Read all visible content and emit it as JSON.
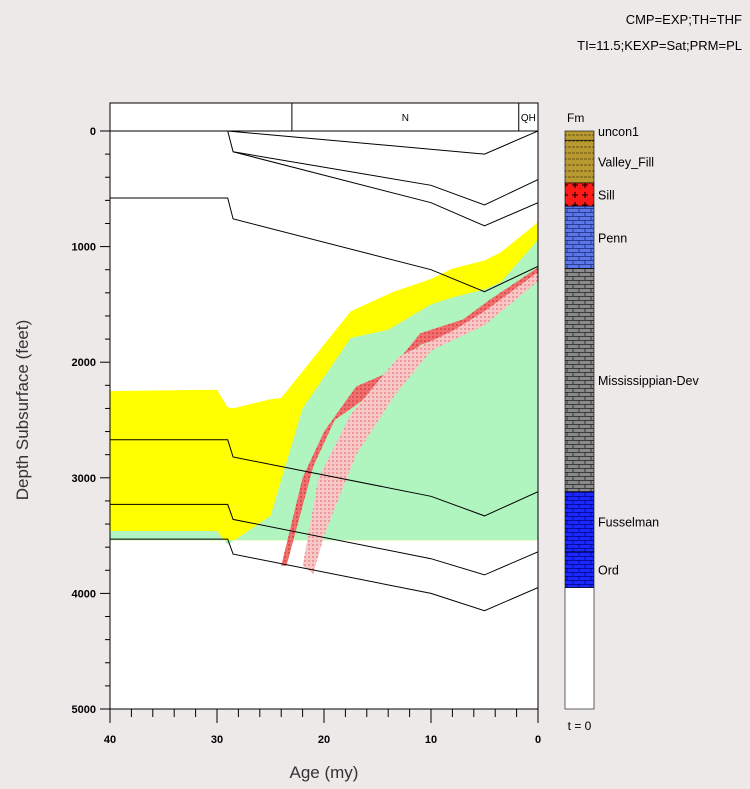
{
  "annotations": {
    "line1": "CMP=EXP;TH=THF",
    "line2": "TI=11.5;KEXP=Sat;PRM=PL"
  },
  "chart_data": {
    "type": "area",
    "title": "",
    "xlabel": "Age (my)",
    "ylabel": "Depth Subsurface (feet)",
    "xlim": [
      40,
      0
    ],
    "ylim": [
      0,
      5000
    ],
    "x_ticks": [
      40,
      30,
      20,
      10,
      0
    ],
    "y_ticks": [
      0,
      1000,
      2000,
      3000,
      4000,
      5000
    ],
    "period_bar": [
      {
        "label": "",
        "from": 40,
        "to": 23
      },
      {
        "label": "N",
        "from": 23,
        "to": 1.8
      },
      {
        "label": "QH",
        "from": 1.8,
        "to": 0
      }
    ],
    "colors": {
      "yellow_zone": "#ffff00",
      "green_zone": "#b0f5c0",
      "red_zone": "#f07070",
      "pink_zone": "#f8c8c8",
      "frame": "#ffffff",
      "line": "#000000"
    },
    "zones": [
      {
        "color": "yellow_zone",
        "points": [
          [
            40,
            2250
          ],
          [
            31.5,
            2240
          ],
          [
            30,
            2240
          ],
          [
            29,
            2390
          ],
          [
            28.5,
            2400
          ],
          [
            25,
            2320
          ],
          [
            24,
            2310
          ],
          [
            17.5,
            1560
          ],
          [
            13.5,
            1390
          ],
          [
            10,
            1280
          ],
          [
            8,
            1190
          ],
          [
            5,
            1120
          ],
          [
            3.5,
            1050
          ],
          [
            0,
            790
          ],
          [
            0,
            3540
          ],
          [
            30,
            3540
          ],
          [
            40,
            3540
          ]
        ]
      },
      {
        "color": "green_zone",
        "points": [
          [
            40,
            3460
          ],
          [
            30,
            3460
          ],
          [
            29,
            3580
          ],
          [
            25,
            3330
          ],
          [
            22,
            2400
          ],
          [
            17.5,
            1790
          ],
          [
            14,
            1720
          ],
          [
            10,
            1500
          ],
          [
            8,
            1440
          ],
          [
            5,
            1370
          ],
          [
            3.5,
            1310
          ],
          [
            0,
            940
          ],
          [
            0,
            3540
          ],
          [
            40,
            3540
          ]
        ]
      },
      {
        "color": "red_zone",
        "points": [
          [
            23,
            3760
          ],
          [
            24,
            3760
          ],
          [
            22,
            3000
          ],
          [
            20,
            2600
          ],
          [
            17,
            2210
          ],
          [
            14,
            2090
          ],
          [
            11,
            1750
          ],
          [
            7,
            1630
          ],
          [
            4.5,
            1460
          ],
          [
            0,
            1180
          ],
          [
            0,
            1250
          ],
          [
            4.5,
            1600
          ],
          [
            7,
            1720
          ],
          [
            11,
            1850
          ],
          [
            14,
            2160
          ],
          [
            17,
            2370
          ],
          [
            19,
            2500
          ],
          [
            21,
            2900
          ],
          [
            23.5,
            3760
          ]
        ]
      },
      {
        "color": "pink_zone",
        "points": [
          [
            22,
            3760
          ],
          [
            20.5,
            3000
          ],
          [
            17.5,
            2450
          ],
          [
            13,
            1950
          ],
          [
            8,
            1730
          ],
          [
            5,
            1560
          ],
          [
            0,
            1220
          ],
          [
            0,
            1300
          ],
          [
            5,
            1680
          ],
          [
            10,
            1900
          ],
          [
            13.5,
            2300
          ],
          [
            17,
            2800
          ],
          [
            20,
            3500
          ],
          [
            21,
            3830
          ]
        ]
      }
    ],
    "horizon_lines": [
      [
        [
          29,
          0
        ],
        [
          5,
          200
        ],
        [
          0,
          0
        ]
      ],
      [
        [
          29,
          0
        ],
        [
          28.5,
          180
        ],
        [
          10,
          470
        ],
        [
          5,
          640
        ],
        [
          0,
          420
        ]
      ],
      [
        [
          28.5,
          180
        ],
        [
          10,
          620
        ],
        [
          5,
          820
        ],
        [
          0,
          620
        ]
      ],
      [
        [
          40,
          580
        ],
        [
          29,
          580
        ],
        [
          28.5,
          760
        ],
        [
          10,
          1200
        ],
        [
          5,
          1390
        ],
        [
          0,
          1170
        ]
      ],
      [
        [
          40,
          2670
        ],
        [
          29,
          2670
        ],
        [
          28.5,
          2820
        ],
        [
          10,
          3160
        ],
        [
          5,
          3330
        ],
        [
          0,
          3120
        ]
      ],
      [
        [
          40,
          3230
        ],
        [
          29,
          3230
        ],
        [
          28.5,
          3360
        ],
        [
          10,
          3700
        ],
        [
          5,
          3840
        ],
        [
          0,
          3640
        ]
      ],
      [
        [
          40,
          3530
        ],
        [
          29,
          3530
        ],
        [
          28.5,
          3660
        ],
        [
          10,
          4000
        ],
        [
          5,
          4150
        ],
        [
          0,
          3950
        ]
      ]
    ],
    "formation_column": {
      "header": "Fm",
      "footer": "t = 0",
      "units": [
        {
          "name": "uncon1",
          "top": 0,
          "bottom": 80,
          "pattern": "olive"
        },
        {
          "name": "Valley_Fill",
          "top": 80,
          "bottom": 450,
          "pattern": "olive"
        },
        {
          "name": "Sill",
          "top": 450,
          "bottom": 650,
          "pattern": "red-cross"
        },
        {
          "name": "Penn",
          "top": 650,
          "bottom": 1190,
          "pattern": "blue-brick"
        },
        {
          "name": "Mississippian-Dev",
          "top": 1190,
          "bottom": 3120,
          "pattern": "gray-brick"
        },
        {
          "name": "Fusselman",
          "top": 3120,
          "bottom": 3640,
          "pattern": "dark-blue"
        },
        {
          "name": "Ord",
          "top": 3640,
          "bottom": 3950,
          "pattern": "dark-blue"
        }
      ]
    }
  }
}
